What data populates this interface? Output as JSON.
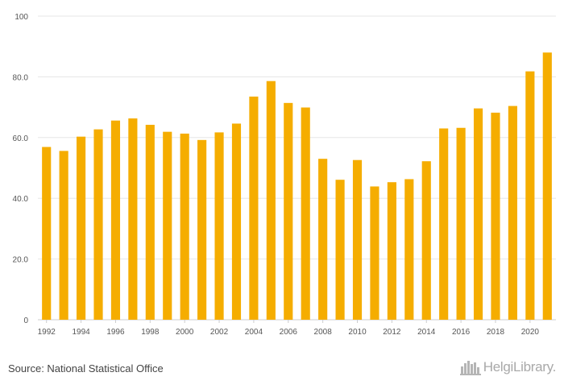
{
  "chart_data": {
    "type": "bar",
    "categories": [
      "1992",
      "1993",
      "1994",
      "1995",
      "1996",
      "1997",
      "1998",
      "1999",
      "2000",
      "2001",
      "2002",
      "2003",
      "2004",
      "2005",
      "2006",
      "2007",
      "2008",
      "2009",
      "2010",
      "2011",
      "2012",
      "2013",
      "2014",
      "2015",
      "2016",
      "2017",
      "2018",
      "2019",
      "2020",
      "2021"
    ],
    "values": [
      56.9,
      55.6,
      60.3,
      62.7,
      65.6,
      66.3,
      64.2,
      61.9,
      61.3,
      59.2,
      61.7,
      64.6,
      73.5,
      78.6,
      71.4,
      69.9,
      53.0,
      46.1,
      52.6,
      43.9,
      45.3,
      46.3,
      52.2,
      63.0,
      63.2,
      69.6,
      68.2,
      70.4,
      81.8,
      88.0
    ],
    "ylim": [
      0,
      100
    ],
    "yticks": [
      "0",
      "20.0",
      "40.0",
      "60.0",
      "80.0",
      "100"
    ],
    "xtick_labels": [
      "1992",
      "1994",
      "1996",
      "1998",
      "2000",
      "2002",
      "2004",
      "2006",
      "2008",
      "2010",
      "2012",
      "2014",
      "2016",
      "2018",
      "2020"
    ],
    "grid": true,
    "bar_color": "#f5ad00",
    "grid_color": "#e6e6e6"
  },
  "footer": {
    "source": "Source: National Statistical Office",
    "brand": "HelgiLibrary.",
    "brand_icon": "city-skyline-icon"
  }
}
